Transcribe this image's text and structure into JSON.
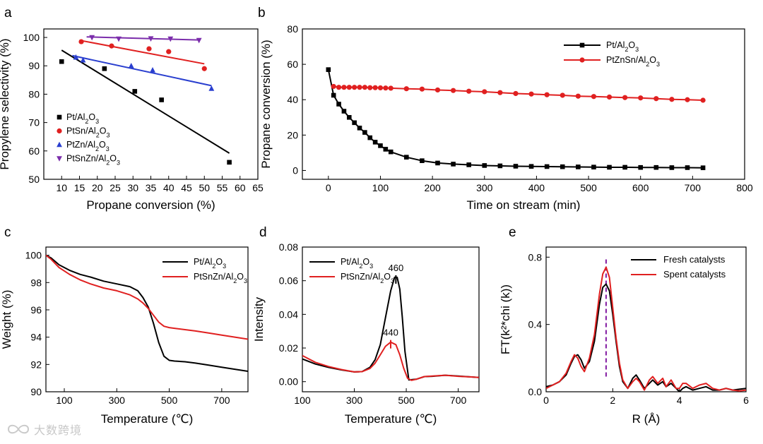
{
  "chart_data": [
    {
      "panel": "a",
      "type": "scatter",
      "xlabel": "Propane conversion (%)",
      "ylabel": "Propylene selectivity (%)",
      "xlim": [
        5,
        65
      ],
      "ylim": [
        50,
        103
      ],
      "xticks": [
        10,
        15,
        20,
        25,
        30,
        35,
        40,
        45,
        50,
        55,
        60,
        65
      ],
      "yticks": [
        50,
        60,
        70,
        80,
        90,
        100
      ],
      "legend": "bottom-left",
      "series": [
        {
          "name": "Pt/Al2O3",
          "color": "#000000",
          "marker": "square",
          "points": [
            [
              10,
              91.5
            ],
            [
              22,
              89
            ],
            [
              30.5,
              81
            ],
            [
              38,
              78
            ],
            [
              57,
              56
            ]
          ],
          "fit": [
            [
              10,
              95.5
            ],
            [
              57,
              59.2
            ]
          ]
        },
        {
          "name": "PtSn/Al2O3",
          "color": "#e02020",
          "marker": "circle",
          "points": [
            [
              15.5,
              98.5
            ],
            [
              24,
              97
            ],
            [
              34.5,
              96
            ],
            [
              40,
              95
            ],
            [
              50,
              89
            ]
          ],
          "fit": [
            [
              15,
              99
            ],
            [
              50,
              90.7
            ]
          ]
        },
        {
          "name": "PtZn/Al2O3",
          "color": "#2a3fcf",
          "marker": "triangle-up",
          "points": [
            [
              14,
              93
            ],
            [
              16,
              92
            ],
            [
              29.5,
              90
            ],
            [
              35.5,
              88.5
            ],
            [
              52,
              82
            ]
          ],
          "fit": [
            [
              13,
              93.6
            ],
            [
              52,
              83
            ]
          ]
        },
        {
          "name": "PtSnZn/Al2O3",
          "color": "#7b2dab",
          "marker": "triangle-down",
          "points": [
            [
              18.5,
              100
            ],
            [
              26,
              99.5
            ],
            [
              35,
              99.6
            ],
            [
              40.5,
              99.5
            ],
            [
              48.5,
              99
            ]
          ],
          "fit": [
            [
              17,
              100.2
            ],
            [
              48.5,
              99.1
            ]
          ]
        }
      ]
    },
    {
      "panel": "b",
      "type": "line",
      "xlabel": "Time on stream (min)",
      "ylabel": "Propane conversion (%)",
      "xlim": [
        -50,
        800
      ],
      "ylim": [
        -5,
        80
      ],
      "xticks": [
        0,
        100,
        200,
        300,
        400,
        500,
        600,
        700,
        800
      ],
      "yticks": [
        0,
        20,
        40,
        60,
        80
      ],
      "legend": "top-right",
      "series": [
        {
          "name": "Pt/Al2O3",
          "color": "#000000",
          "marker": "square",
          "x": [
            0,
            10,
            20,
            30,
            40,
            50,
            60,
            70,
            80,
            90,
            100,
            110,
            120,
            150,
            180,
            210,
            240,
            270,
            300,
            330,
            360,
            390,
            420,
            450,
            480,
            510,
            540,
            570,
            600,
            630,
            660,
            690,
            720
          ],
          "y": [
            57,
            42.5,
            37.5,
            33.5,
            30,
            27,
            24,
            21.5,
            18.5,
            16,
            14,
            12,
            10.5,
            7.5,
            5.5,
            4.2,
            3.6,
            3.2,
            2.8,
            2.6,
            2.4,
            2.3,
            2.2,
            2.1,
            2.0,
            1.9,
            1.8,
            1.8,
            1.7,
            1.7,
            1.6,
            1.6,
            1.5
          ]
        },
        {
          "name": "PtZnSn/Al2O3",
          "color": "#e02020",
          "marker": "circle",
          "x": [
            10,
            20,
            30,
            40,
            50,
            60,
            70,
            80,
            90,
            100,
            110,
            120,
            150,
            180,
            210,
            240,
            270,
            300,
            330,
            360,
            390,
            420,
            450,
            480,
            510,
            540,
            570,
            600,
            630,
            660,
            690,
            720
          ],
          "y": [
            47.5,
            47,
            47,
            47,
            47,
            47,
            47,
            46.8,
            46.8,
            46.7,
            46.6,
            46.5,
            46.2,
            46,
            45.5,
            45.2,
            44.8,
            44.5,
            44,
            43.5,
            43.2,
            42.8,
            42.5,
            42,
            41.8,
            41.5,
            41.2,
            41,
            40.6,
            40.2,
            40,
            39.7
          ]
        }
      ]
    },
    {
      "panel": "c",
      "type": "line",
      "xlabel": "Temperature (℃)",
      "ylabel": "Weight (%)",
      "xlim": [
        30,
        800
      ],
      "ylim": [
        90,
        100.6
      ],
      "xticks": [
        100,
        300,
        500,
        700
      ],
      "yticks": [
        90,
        92,
        94,
        96,
        98,
        100
      ],
      "legend": "top-right",
      "series": [
        {
          "name": "Pt/Al2O3",
          "color": "#000000",
          "x": [
            30,
            50,
            80,
            120,
            160,
            200,
            250,
            300,
            350,
            380,
            400,
            420,
            440,
            460,
            480,
            500,
            520,
            560,
            600,
            650,
            700,
            750,
            800
          ],
          "y": [
            100,
            99.8,
            99.3,
            98.9,
            98.6,
            98.4,
            98.1,
            97.9,
            97.7,
            97.4,
            96.9,
            96.2,
            95.0,
            93.6,
            92.6,
            92.3,
            92.25,
            92.2,
            92.1,
            91.95,
            91.8,
            91.65,
            91.5
          ]
        },
        {
          "name": "PtSnZn/Al2O3",
          "color": "#e02020",
          "x": [
            30,
            50,
            80,
            120,
            160,
            200,
            250,
            300,
            350,
            380,
            400,
            420,
            440,
            460,
            480,
            500,
            520,
            560,
            600,
            650,
            700,
            750,
            800
          ],
          "y": [
            100,
            99.7,
            99.1,
            98.6,
            98.2,
            97.9,
            97.6,
            97.4,
            97.1,
            96.8,
            96.5,
            96.1,
            95.6,
            95.1,
            94.8,
            94.7,
            94.65,
            94.55,
            94.45,
            94.3,
            94.15,
            94.0,
            93.85
          ]
        }
      ]
    },
    {
      "panel": "d",
      "type": "line",
      "xlabel": "Temperature (℃)",
      "ylabel": "Intensity",
      "xlim": [
        100,
        780
      ],
      "ylim": [
        -0.006,
        0.08
      ],
      "xticks": [
        100,
        300,
        500,
        700
      ],
      "yticks": [
        0.0,
        0.02,
        0.04,
        0.06,
        0.08
      ],
      "legend": "top-left",
      "annotations": [
        {
          "text": "460",
          "x": 460,
          "color": "#000000"
        },
        {
          "text": "440",
          "x": 440,
          "color": "#e02020"
        }
      ],
      "series": [
        {
          "name": "Pt/Al2O3",
          "color": "#000000",
          "x": [
            100,
            150,
            200,
            250,
            300,
            330,
            360,
            380,
            400,
            420,
            440,
            455,
            465,
            475,
            485,
            495,
            510,
            540,
            570,
            600,
            650,
            700,
            750,
            780
          ],
          "y": [
            0.0135,
            0.0105,
            0.0085,
            0.007,
            0.0058,
            0.006,
            0.0085,
            0.013,
            0.022,
            0.038,
            0.054,
            0.062,
            0.062,
            0.055,
            0.038,
            0.018,
            0.001,
            0.0015,
            0.003,
            0.0032,
            0.0038,
            0.0033,
            0.0028,
            0.0025
          ]
        },
        {
          "name": "PtSnZn/Al2O3",
          "color": "#e02020",
          "x": [
            100,
            150,
            200,
            250,
            300,
            330,
            360,
            380,
            400,
            420,
            440,
            460,
            475,
            490,
            505,
            520,
            540,
            570,
            600,
            650,
            700,
            750,
            780
          ],
          "y": [
            0.0155,
            0.0115,
            0.009,
            0.0072,
            0.0058,
            0.006,
            0.0078,
            0.011,
            0.016,
            0.021,
            0.0235,
            0.022,
            0.016,
            0.008,
            0.002,
            0.0008,
            0.0015,
            0.003,
            0.0033,
            0.0038,
            0.0032,
            0.0028,
            0.0025
          ]
        }
      ]
    },
    {
      "panel": "e",
      "type": "line",
      "xlabel": "R (Å)",
      "ylabel": "FT(k²*chi (k))",
      "xlim": [
        0,
        6
      ],
      "ylim": [
        0,
        0.86
      ],
      "xticks": [
        0,
        2,
        4,
        6
      ],
      "yticks": [
        0.0,
        0.4,
        0.8
      ],
      "legend": "top-right",
      "reference_line_x": 1.8,
      "series": [
        {
          "name": "Fresh catalysts",
          "color": "#000000",
          "x": [
            0,
            0.2,
            0.4,
            0.6,
            0.75,
            0.85,
            0.95,
            1.05,
            1.15,
            1.3,
            1.45,
            1.6,
            1.7,
            1.8,
            1.9,
            2.0,
            2.1,
            2.2,
            2.3,
            2.45,
            2.6,
            2.7,
            2.8,
            2.95,
            3.1,
            3.2,
            3.35,
            3.5,
            3.6,
            3.75,
            3.9,
            4.0,
            4.1,
            4.2,
            4.4,
            4.6,
            4.8,
            5.0,
            5.2,
            5.4,
            5.6,
            5.8,
            6.0
          ],
          "y": [
            0.03,
            0.04,
            0.06,
            0.1,
            0.17,
            0.21,
            0.22,
            0.19,
            0.14,
            0.18,
            0.3,
            0.52,
            0.62,
            0.64,
            0.6,
            0.46,
            0.3,
            0.15,
            0.06,
            0.02,
            0.08,
            0.1,
            0.07,
            0.02,
            0.05,
            0.07,
            0.04,
            0.06,
            0.03,
            0.05,
            0.02,
            0.0,
            0.02,
            0.03,
            0.01,
            0.02,
            0.03,
            0.01,
            0.01,
            0.02,
            0.01,
            0.015,
            0.02
          ]
        },
        {
          "name": "Spent catalysts",
          "color": "#e02020",
          "x": [
            0,
            0.2,
            0.4,
            0.6,
            0.75,
            0.85,
            0.95,
            1.05,
            1.15,
            1.3,
            1.45,
            1.6,
            1.7,
            1.8,
            1.9,
            2.0,
            2.1,
            2.2,
            2.3,
            2.45,
            2.6,
            2.7,
            2.8,
            2.95,
            3.1,
            3.2,
            3.35,
            3.5,
            3.6,
            3.75,
            3.9,
            4.0,
            4.1,
            4.2,
            4.4,
            4.6,
            4.8,
            5.0,
            5.2,
            5.4,
            5.6,
            5.8,
            6.0
          ],
          "y": [
            0.02,
            0.04,
            0.06,
            0.11,
            0.18,
            0.22,
            0.2,
            0.15,
            0.12,
            0.2,
            0.34,
            0.58,
            0.7,
            0.74,
            0.68,
            0.5,
            0.32,
            0.17,
            0.07,
            0.02,
            0.06,
            0.08,
            0.06,
            0.01,
            0.07,
            0.09,
            0.05,
            0.08,
            0.03,
            0.07,
            0.02,
            0.02,
            0.05,
            0.05,
            0.02,
            0.04,
            0.05,
            0.02,
            0.01,
            0.02,
            0.01,
            0.005,
            0.01
          ]
        }
      ]
    }
  ],
  "watermark": {
    "text": "大数跨境",
    "icon": "infinity-logo-icon"
  }
}
